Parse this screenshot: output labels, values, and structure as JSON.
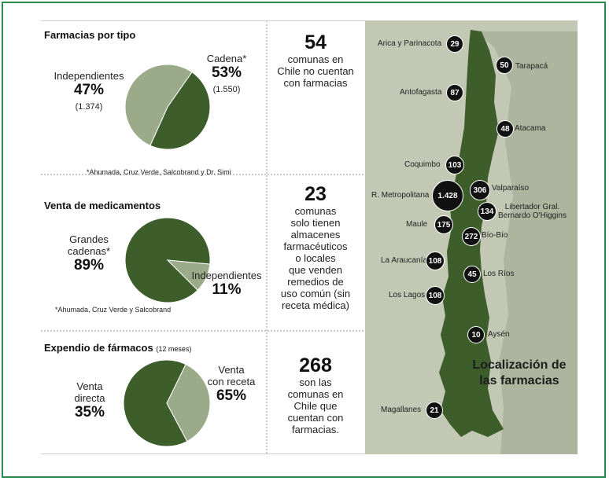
{
  "sections": {
    "tipo": {
      "title": "Farmacias por tipo",
      "note": "*Ahumada, Cruz Verde, Salcobrand y Dr. Simi"
    },
    "venta": {
      "title": "Venta de medicamentos",
      "note": "*Ahumada, Cruz Verde y Salcobrand"
    },
    "expendio": {
      "title": "Expendio de fármacos",
      "title_small": "(12 meses)"
    }
  },
  "chart_data": [
    {
      "type": "pie",
      "title": "Farmacias por tipo",
      "slices": [
        {
          "label": "Independientes",
          "value": 47,
          "display": "47%",
          "count": "(1.374)",
          "color": "#3d5e2b"
        },
        {
          "label": "Cadena*",
          "value": 53,
          "display": "53%",
          "count": "(1.550)",
          "color": "#9bab89"
        }
      ]
    },
    {
      "type": "pie",
      "title": "Venta de medicamentos",
      "slices": [
        {
          "label": "Grandes cadenas*",
          "label_line1": "Grandes",
          "label_line2": "cadenas*",
          "value": 89,
          "display": "89%",
          "color": "#3d5e2b"
        },
        {
          "label": "Independientes",
          "value": 11,
          "display": "11%",
          "color": "#9bab89"
        }
      ]
    },
    {
      "type": "pie",
      "title": "Expendio de fármacos (12 meses)",
      "slices": [
        {
          "label": "Venta con receta",
          "label_line1": "Venta",
          "label_line2": "con receta",
          "value": 65,
          "display": "65%",
          "color": "#3d5e2b"
        },
        {
          "label": "Venta directa",
          "label_line1": "Venta",
          "label_line2": "directa",
          "value": 35,
          "display": "35%",
          "color": "#9bab89"
        }
      ]
    }
  ],
  "stats": [
    {
      "number": "54",
      "lines": [
        "comunas en",
        "Chile no cuentan",
        "con farmacias"
      ]
    },
    {
      "number": "23",
      "lines": [
        "comunas",
        "solo tienen",
        "almacenes",
        "farmacéuticos",
        "o locales",
        "que venden",
        "remedios de",
        "uso común (sin",
        "receta médica)"
      ]
    },
    {
      "number": "268",
      "lines": [
        "son las",
        "comunas en",
        "Chile que",
        "cuentan con",
        "farmacias."
      ]
    }
  ],
  "map": {
    "title_line1": "Localización de",
    "title_line2": "las farmacias",
    "colors": {
      "land": "#3d5e2b",
      "background": "#c3c8b4",
      "badge": "#111111"
    },
    "regions": [
      {
        "name": "Arica y Parinacota",
        "value": "29"
      },
      {
        "name": "Tarapacá",
        "value": "50"
      },
      {
        "name": "Antofagasta",
        "value": "87"
      },
      {
        "name": "Atacama",
        "value": "48"
      },
      {
        "name": "Coquimbo",
        "value": "103"
      },
      {
        "name": "Valparaíso",
        "value": "306"
      },
      {
        "name": "R. Metropolitana",
        "value": "1.428"
      },
      {
        "name": "Libertador Gral. Bernardo O'Higgins",
        "name_line1": "Libertador Gral.",
        "name_line2": "Bernardo O'Higgins",
        "value": "134"
      },
      {
        "name": "Maule",
        "value": "175"
      },
      {
        "name": "Bío-Bío",
        "value": "272"
      },
      {
        "name": "La Araucanía",
        "value": "108"
      },
      {
        "name": "Los Ríos",
        "value": "45"
      },
      {
        "name": "Los Lagos",
        "value": "108"
      },
      {
        "name": "Aysén",
        "value": "10"
      },
      {
        "name": "Magallanes",
        "value": "21"
      }
    ]
  }
}
